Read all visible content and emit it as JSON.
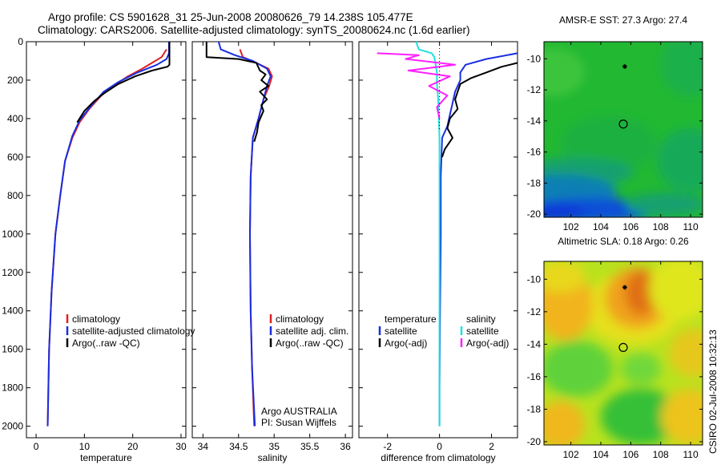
{
  "header": {
    "line1": "Argo profile: CS 5901628_31 25-Jun-2008 20080626_79 14.238S 105.477E",
    "line2": "Climatology: CARS2006. Satellite-adjusted climatology: synTS_20080624.nc (1.6d earlier)"
  },
  "side_label": "CSIRO 02-Jul-2008 10:32:13",
  "colors": {
    "climatology": "#e02020",
    "satellite": "#1a2ee0",
    "argo": "#000000",
    "salinity_satellite": "#20e0e0",
    "salinity_argo": "#ff20ff"
  },
  "chart_data": [
    {
      "id": "temperature",
      "type": "line",
      "xlabel": "temperature",
      "ylabel": "",
      "xlim": [
        -2,
        31
      ],
      "ylim": [
        0,
        2060
      ],
      "xticks": [
        0,
        10,
        20,
        30
      ],
      "yticks": [
        0,
        200,
        400,
        600,
        800,
        1000,
        1200,
        1400,
        1600,
        1800,
        2000
      ],
      "legend": [
        "climatology",
        "satellite-adjusted climatology",
        "Argo(..raw -QC)"
      ],
      "series": [
        {
          "name": "climatology",
          "color": "#e02020",
          "x": [
            27.0,
            26.0,
            24.0,
            22.0,
            19.0,
            16.0,
            13.5,
            11.0,
            9.0,
            7.5,
            6.0,
            5.0,
            4.0,
            3.2,
            2.7,
            2.4
          ],
          "y": [
            40,
            80,
            110,
            140,
            180,
            230,
            280,
            350,
            420,
            500,
            620,
            800,
            1000,
            1300,
            1600,
            2000
          ]
        },
        {
          "name": "satellite",
          "color": "#1a2ee0",
          "x": [
            27.5,
            27.5,
            27.0,
            25.0,
            21.0,
            17.0,
            14.0,
            11.5,
            9.0,
            7.5,
            6.0,
            5.0,
            4.0,
            3.2,
            2.7,
            2.4
          ],
          "y": [
            0,
            60,
            90,
            120,
            160,
            210,
            260,
            330,
            410,
            490,
            620,
            800,
            1000,
            1300,
            1600,
            2000
          ]
        },
        {
          "name": "Argo",
          "color": "#000000",
          "x": [
            27.6,
            27.6,
            27.2,
            24.0,
            20.5,
            17.0,
            14.0,
            12.0,
            10.0,
            8.5
          ],
          "y": [
            0,
            120,
            130,
            150,
            180,
            220,
            270,
            310,
            360,
            420
          ]
        }
      ]
    },
    {
      "id": "salinity",
      "type": "line",
      "xlabel": "salinity",
      "ylabel": "",
      "xlim": [
        33.85,
        36.1
      ],
      "ylim": [
        0,
        2060
      ],
      "xticks": [
        34,
        34.5,
        35,
        35.5,
        36
      ],
      "xtick_labels": [
        "34",
        "34.5",
        "35",
        "35.5",
        "36"
      ],
      "legend": [
        "climatology",
        "satellite adj. clim.",
        "Argo(..raw -QC)"
      ],
      "annotation": [
        "Argo AUSTRALIA",
        "PI: Susan Wijffels"
      ],
      "series": [
        {
          "name": "climatology",
          "color": "#e02020",
          "x": [
            34.52,
            34.56,
            34.75,
            34.92,
            34.97,
            34.93,
            34.85,
            34.78,
            34.7,
            34.67,
            34.66,
            34.67,
            34.69,
            34.72
          ],
          "y": [
            40,
            80,
            110,
            140,
            180,
            230,
            300,
            400,
            500,
            700,
            1000,
            1400,
            1700,
            2000
          ]
        },
        {
          "name": "satellite",
          "color": "#1a2ee0",
          "x": [
            34.22,
            34.25,
            34.45,
            34.7,
            34.9,
            34.95,
            34.9,
            34.85,
            34.78,
            34.7,
            34.67,
            34.66,
            34.67,
            34.69,
            34.73
          ],
          "y": [
            0,
            40,
            70,
            100,
            140,
            180,
            230,
            300,
            400,
            500,
            700,
            1000,
            1400,
            1700,
            2000
          ]
        },
        {
          "name": "Argo",
          "color": "#000000",
          "x": [
            34.05,
            34.05,
            34.5,
            34.75,
            34.8,
            34.88,
            34.82,
            34.92,
            34.8,
            34.9,
            34.82,
            34.85,
            34.78,
            34.76,
            34.72
          ],
          "y": [
            0,
            80,
            90,
            110,
            150,
            170,
            200,
            230,
            260,
            300,
            330,
            360,
            420,
            470,
            520
          ]
        }
      ]
    },
    {
      "id": "difference",
      "type": "line",
      "xlabel": "difference from climatology",
      "ylabel": "",
      "xlim": [
        -3.1,
        3.0
      ],
      "ylim": [
        0,
        2060
      ],
      "xticks": [
        -2,
        0,
        2
      ],
      "legend": {
        "temperature": [
          "satellite",
          "Argo(-adj)"
        ],
        "salinity": [
          "satellite",
          "Argo(-adj)"
        ],
        "temperature_heading": "temperature",
        "salinity_heading": "salinity"
      },
      "series": [
        {
          "name": "temperature satellite",
          "color": "#1a2ee0",
          "x": [
            3.0,
            1.8,
            1.0,
            0.8,
            0.8,
            0.6,
            0.5,
            0.4,
            0.3,
            0.1,
            0.05,
            0.05,
            0.02,
            0.0,
            0.0
          ],
          "y": [
            60,
            90,
            120,
            160,
            200,
            260,
            320,
            380,
            440,
            500,
            700,
            1000,
            1400,
            1800,
            2000
          ]
        },
        {
          "name": "temperature Argo",
          "color": "#000000",
          "x": [
            3.0,
            2.4,
            2.2,
            1.8,
            1.2,
            0.8,
            0.7,
            0.6,
            0.7,
            0.4,
            0.3,
            0.5,
            0.2,
            0.1
          ],
          "y": [
            110,
            130,
            140,
            160,
            190,
            220,
            260,
            300,
            350,
            400,
            450,
            500,
            560,
            600
          ]
        },
        {
          "name": "salinity satellite",
          "color": "#20e0e0",
          "x": [
            -0.9,
            -0.8,
            -0.3,
            -0.2,
            -0.15,
            -0.1,
            -0.1,
            -0.05,
            0.0,
            0.0,
            0.0
          ],
          "y": [
            0,
            40,
            60,
            80,
            120,
            160,
            220,
            300,
            500,
            1000,
            2000
          ]
        },
        {
          "name": "salinity Argo",
          "color": "#ff20ff",
          "x": [
            -2.4,
            -0.8,
            -1.3,
            0.6,
            -1.2,
            0.4,
            -0.4,
            0.3,
            -0.1,
            0.0
          ],
          "y": [
            60,
            70,
            90,
            120,
            150,
            180,
            230,
            280,
            340,
            400
          ]
        }
      ]
    },
    {
      "id": "sst_map",
      "type": "heatmap",
      "title": "AMSR-E SST: 27.3 Argo: 27.4",
      "xlim": [
        100.2,
        110.8
      ],
      "ylim": [
        -20.2,
        -8.9
      ],
      "xticks": [
        102,
        104,
        106,
        108,
        110
      ],
      "yticks": [
        -10,
        -12,
        -14,
        -16,
        -18,
        -20
      ],
      "markers": [
        {
          "type": "star",
          "x": 105.6,
          "y": -10.5
        },
        {
          "type": "circle",
          "x": 105.5,
          "y": -14.2
        }
      ]
    },
    {
      "id": "sla_map",
      "type": "heatmap",
      "title": "Altimetric SLA: 0.18 Argo: 0.26",
      "xlim": [
        100.2,
        110.8
      ],
      "ylim": [
        -20.2,
        -8.9
      ],
      "xticks": [
        102,
        104,
        106,
        108,
        110
      ],
      "yticks": [
        -10,
        -12,
        -14,
        -16,
        -18,
        -20
      ],
      "markers": [
        {
          "type": "star",
          "x": 105.6,
          "y": -10.5
        },
        {
          "type": "circle",
          "x": 105.5,
          "y": -14.2
        }
      ]
    }
  ]
}
